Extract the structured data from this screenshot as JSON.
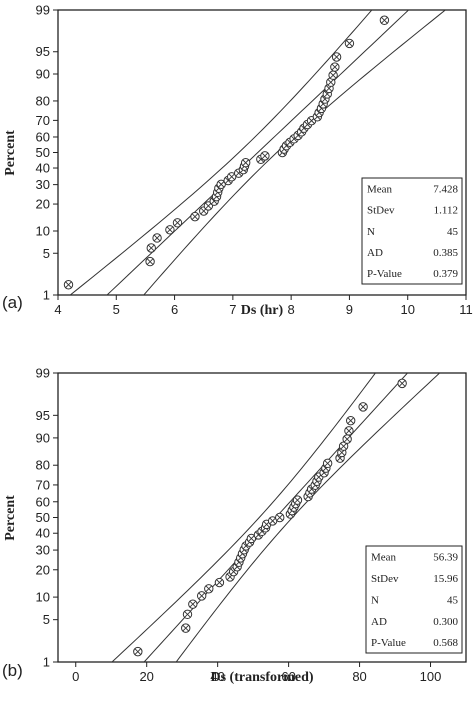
{
  "chart_data": [
    {
      "panel_label": "(a)",
      "type": "scatter",
      "subtype": "normal probability plot",
      "xlabel": "Ds (hr)",
      "ylabel": "Percent",
      "xlim": [
        4,
        11
      ],
      "xticks": [
        4,
        5,
        6,
        7,
        8,
        9,
        10,
        11
      ],
      "yticks": [
        1,
        5,
        10,
        20,
        30,
        40,
        50,
        60,
        70,
        80,
        90,
        95,
        99
      ],
      "y_scale": "normal probability",
      "grid": false,
      "legend": "none",
      "stats": [
        {
          "label": "Mean",
          "value": "7.428"
        },
        {
          "label": "StDev",
          "value": "1.112"
        },
        {
          "label": "N",
          "value": "45"
        },
        {
          "label": "AD",
          "value": "0.385"
        },
        {
          "label": "P-Value",
          "value": "0.379"
        }
      ],
      "mean": 7.428,
      "stdev": 1.112,
      "x": [
        4.18,
        5.58,
        5.6,
        5.7,
        5.92,
        6.05,
        6.35,
        6.5,
        6.58,
        6.68,
        6.72,
        6.74,
        6.76,
        6.8,
        6.92,
        6.98,
        7.1,
        7.18,
        7.2,
        7.22,
        7.48,
        7.55,
        7.85,
        7.88,
        7.92,
        7.98,
        8.05,
        8.12,
        8.18,
        8.22,
        8.28,
        8.35,
        8.45,
        8.48,
        8.52,
        8.55,
        8.58,
        8.62,
        8.65,
        8.68,
        8.72,
        8.75,
        8.78,
        9.0,
        9.6
      ]
    },
    {
      "panel_label": "(b)",
      "type": "scatter",
      "subtype": "normal probability plot",
      "xlabel": "Ds (transformed)",
      "ylabel": "Percent",
      "xlim": [
        -5,
        110
      ],
      "xticks": [
        0,
        20,
        40,
        60,
        80,
        100
      ],
      "yticks": [
        1,
        5,
        10,
        20,
        30,
        40,
        50,
        60,
        70,
        80,
        90,
        95,
        99
      ],
      "y_scale": "normal probability",
      "grid": false,
      "legend": "none",
      "stats": [
        {
          "label": "Mean",
          "value": "56.39"
        },
        {
          "label": "StDev",
          "value": "15.96"
        },
        {
          "label": "N",
          "value": "45"
        },
        {
          "label": "AD",
          "value": "0.300"
        },
        {
          "label": "P-Value",
          "value": "0.568"
        }
      ],
      "mean": 56.39,
      "stdev": 15.96,
      "x": [
        17.5,
        31.0,
        31.5,
        33.0,
        35.5,
        37.5,
        40.5,
        43.5,
        44.5,
        45.5,
        46.0,
        46.5,
        47.0,
        47.5,
        48.0,
        49.0,
        49.5,
        51.5,
        52.5,
        53.5,
        53.8,
        55.5,
        57.5,
        60.5,
        61.0,
        61.5,
        62.0,
        62.5,
        65.5,
        66.0,
        66.5,
        67.5,
        68.0,
        68.5,
        70.0,
        70.5,
        71.0,
        74.5,
        75.0,
        75.5,
        76.5,
        77.0,
        77.5,
        81.0,
        92.0
      ]
    }
  ]
}
